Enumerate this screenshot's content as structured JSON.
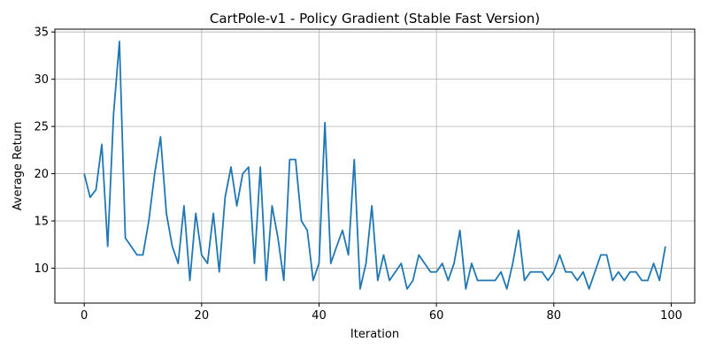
{
  "chart_data": {
    "type": "line",
    "title": "CartPole-v1 - Policy Gradient (Stable Fast Version)",
    "xlabel": "Iteration",
    "ylabel": "Average Return",
    "xlim": [
      -5,
      104
    ],
    "ylim": [
      6.3,
      35.3
    ],
    "xticks": [
      0,
      20,
      40,
      60,
      80,
      100
    ],
    "yticks": [
      10,
      15,
      20,
      25,
      30,
      35
    ],
    "grid": true,
    "line_color": "#1f77b4",
    "series": [
      {
        "x": [
          0,
          1,
          2,
          3,
          4,
          5,
          6,
          7,
          8,
          9,
          10,
          11,
          12,
          13,
          14,
          15,
          16,
          17,
          18,
          19,
          20,
          21,
          22,
          23,
          24,
          25,
          26,
          27,
          28,
          29,
          30,
          31,
          32,
          33,
          34,
          35,
          36,
          37,
          38,
          39,
          40,
          41,
          42,
          43,
          44,
          45,
          46,
          47,
          48,
          49,
          50,
          51,
          52,
          53,
          54,
          55,
          56,
          57,
          58,
          59,
          60,
          61,
          62,
          63,
          64,
          65,
          66,
          67,
          68,
          69,
          70,
          71,
          72,
          73,
          74,
          75,
          76,
          77,
          78,
          79,
          80,
          81,
          82,
          83,
          84,
          85,
          86,
          87,
          88,
          89,
          90,
          91,
          92,
          93,
          94,
          95,
          96,
          97,
          98,
          99
        ],
        "values": [
          20.0,
          17.5,
          18.3,
          23.1,
          12.3,
          26.3,
          34.0,
          13.2,
          12.3,
          11.4,
          11.4,
          15.0,
          20.0,
          23.9,
          15.8,
          12.3,
          10.5,
          16.6,
          8.7,
          15.8,
          11.4,
          10.5,
          15.8,
          9.6,
          17.5,
          20.7,
          16.6,
          20.0,
          20.7,
          10.5,
          20.7,
          8.7,
          16.6,
          13.2,
          8.7,
          21.5,
          21.5,
          15.0,
          14.0,
          8.7,
          10.5,
          25.4,
          10.5,
          12.3,
          14.0,
          11.4,
          21.5,
          7.8,
          10.5,
          16.6,
          8.7,
          11.4,
          8.7,
          9.6,
          10.5,
          7.8,
          8.7,
          11.4,
          10.5,
          9.6,
          9.6,
          10.5,
          8.7,
          10.5,
          14.0,
          7.8,
          10.5,
          8.7,
          8.7,
          8.7,
          8.7,
          9.6,
          7.8,
          10.5,
          14.0,
          8.7,
          9.6,
          9.6,
          9.6,
          8.7,
          9.6,
          11.4,
          9.6,
          9.6,
          8.7,
          9.6,
          7.8,
          9.6,
          11.4,
          11.4,
          8.7,
          9.6,
          8.7,
          9.6,
          9.6,
          8.7,
          8.7,
          10.5,
          8.7,
          12.3
        ]
      }
    ]
  }
}
